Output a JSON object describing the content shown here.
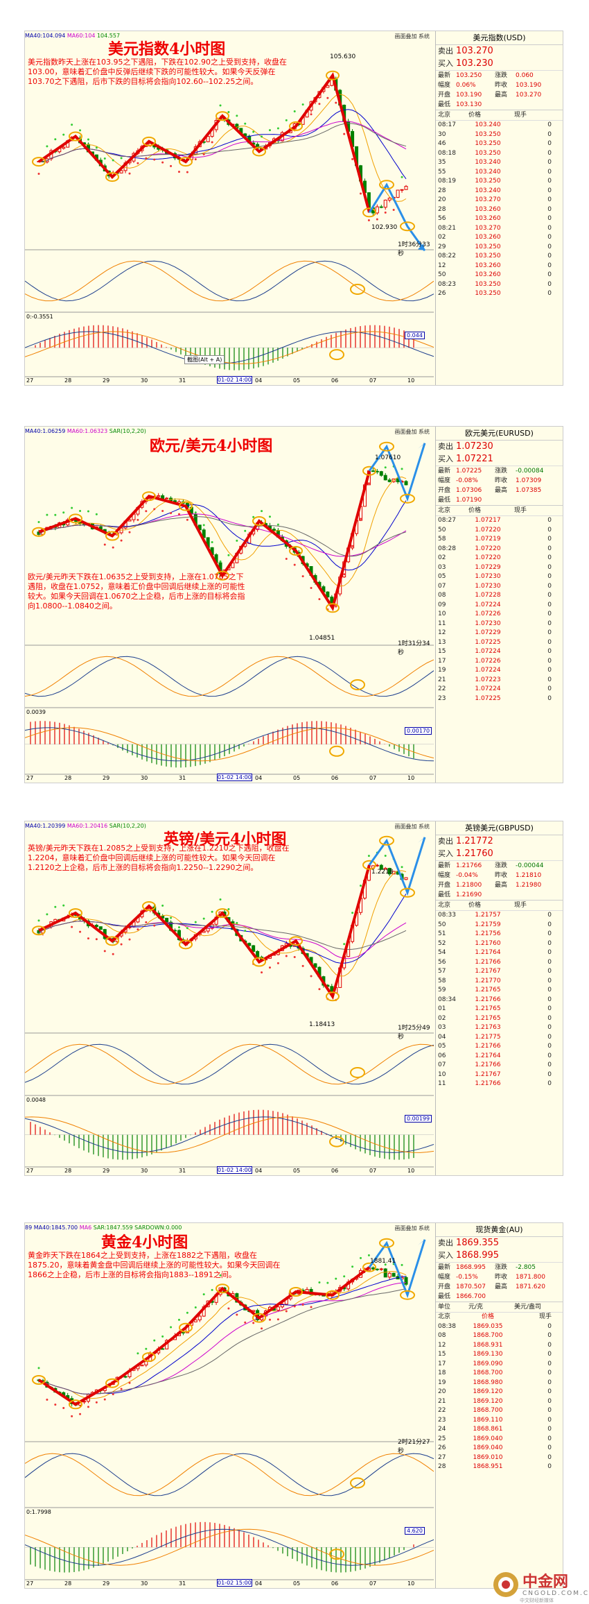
{
  "panels": [
    {
      "id": "p1",
      "title": "美元指数4小时图",
      "legend": {
        "ma40": "MA40:104.094",
        "ma60": "MA60:104",
        "other": "104.557"
      },
      "toolbar": "画面叠加  系统",
      "note": "美元指数昨天上涨在103.95之下遇阻，下跌在102.90之上受到支持，收盘在103.00，意味着汇价盘中反弹后继续下跌的可能性较大。如果今天反弹在103.70之下遇阻，后市下跌的目标将会指向102.60--102.25之间。",
      "high_label": "105.630",
      "low_label": "102.930",
      "countdown": "1时36分33秒",
      "macd_label": "0:-0.3551",
      "macd_value": "0.044",
      "screenshot_tip": "截图(Alt + A)",
      "dates": [
        "27",
        "28",
        "29",
        "30",
        "31",
        "01-02 14:00",
        "04",
        "05",
        "06",
        "07",
        "10"
      ],
      "quote": {
        "name": "美元指数(USD)",
        "sell_label": "卖出",
        "sell": "103.270",
        "buy_label": "买入",
        "buy": "103.230",
        "stats": [
          [
            "最新",
            "103.250",
            "涨跌",
            "0.060"
          ],
          [
            "幅度",
            "0.06%",
            "昨收",
            "103.190"
          ],
          [
            "开盘",
            "103.190",
            "最高",
            "103.270"
          ],
          [
            "最低",
            "103.130",
            "",
            ""
          ]
        ],
        "head": [
          "北京",
          "价格",
          "现手"
        ],
        "ticks": [
          [
            "08:17",
            "103.240",
            "0"
          ],
          [
            "30",
            "103.250",
            "0"
          ],
          [
            "46",
            "103.250",
            "0"
          ],
          [
            "08:18",
            "103.250",
            "0"
          ],
          [
            "35",
            "103.240",
            "0"
          ],
          [
            "55",
            "103.240",
            "0"
          ],
          [
            "08:19",
            "103.250",
            "0"
          ],
          [
            "28",
            "103.240",
            "0"
          ],
          [
            "20",
            "103.270",
            "0"
          ],
          [
            "28",
            "103.260",
            "0"
          ],
          [
            "56",
            "103.260",
            "0"
          ],
          [
            "08:21",
            "103.270",
            "0"
          ],
          [
            "02",
            "103.260",
            "0"
          ],
          [
            "29",
            "103.250",
            "0"
          ],
          [
            "08:22",
            "103.250",
            "0"
          ],
          [
            "12",
            "103.260",
            "0"
          ],
          [
            "50",
            "103.260",
            "0"
          ],
          [
            "08:23",
            "103.250",
            "0"
          ],
          [
            "26",
            "103.250",
            "0"
          ]
        ]
      }
    },
    {
      "id": "p2",
      "title": "欧元/美元4小时图",
      "legend": {
        "ma40": "MA40:1.06259",
        "ma60": "MA60:1.06323",
        "other": "SAR(10,2,20)"
      },
      "toolbar": "画面叠加  系统",
      "note": "欧元/美元昨天下跌在1.0635之上受到支持，上涨在1.0765之下遇阻，收盘在1.0752，意味着汇价盘中回调后继续上涨的可能性较大。如果今天回调在1.0670之上企稳，后市上涨的目标将会指向1.0800--1.0840之间。",
      "high_label": "1.07610",
      "low_label": "1.04851",
      "countdown": "1时31分34秒",
      "macd_label": "0.0039",
      "macd_value": "0.00170",
      "dates": [
        "27",
        "28",
        "29",
        "30",
        "31",
        "01-02 14:00",
        "04",
        "05",
        "06",
        "07",
        "10"
      ],
      "quote": {
        "name": "欧元美元(EURUSD)",
        "sell_label": "卖出",
        "sell": "1.07230",
        "buy_label": "买入",
        "buy": "1.07221",
        "stats": [
          [
            "最新",
            "1.07225",
            "涨跌",
            "-0.00084"
          ],
          [
            "幅度",
            "-0.08%",
            "昨收",
            "1.07309"
          ],
          [
            "开盘",
            "1.07306",
            "最高",
            "1.07385"
          ],
          [
            "最低",
            "1.07190",
            "",
            ""
          ]
        ],
        "head": [
          "北京",
          "价格",
          "现手"
        ],
        "ticks": [
          [
            "08:27",
            "1.07217",
            "0"
          ],
          [
            "50",
            "1.07220",
            "0"
          ],
          [
            "58",
            "1.07219",
            "0"
          ],
          [
            "08:28",
            "1.07220",
            "0"
          ],
          [
            "02",
            "1.07220",
            "0"
          ],
          [
            "03",
            "1.07229",
            "0"
          ],
          [
            "05",
            "1.07230",
            "0"
          ],
          [
            "07",
            "1.07230",
            "0"
          ],
          [
            "08",
            "1.07228",
            "0"
          ],
          [
            "09",
            "1.07224",
            "0"
          ],
          [
            "10",
            "1.07226",
            "0"
          ],
          [
            "11",
            "1.07230",
            "0"
          ],
          [
            "12",
            "1.07229",
            "0"
          ],
          [
            "13",
            "1.07225",
            "0"
          ],
          [
            "15",
            "1.07224",
            "0"
          ],
          [
            "17",
            "1.07226",
            "0"
          ],
          [
            "19",
            "1.07224",
            "0"
          ],
          [
            "21",
            "1.07223",
            "0"
          ],
          [
            "22",
            "1.07224",
            "0"
          ],
          [
            "23",
            "1.07225",
            "0"
          ]
        ]
      }
    },
    {
      "id": "p3",
      "title": "英镑/美元4小时图",
      "legend": {
        "ma40": "MA40:1.20399",
        "ma60": "MA60:1.20416",
        "other": "SAR(10,2,20)"
      },
      "toolbar": "画面叠加  系统",
      "note": "英镑/美元昨天下跌在1.2085之上受到支持，上涨在1.2210之下遇阻，收盘在1.2204，意味着汇价盘中回调后继续上涨的可能性较大。如果今天回调在1.2120之上企稳，后市上涨的目标将会指向1.2250--1.2290之间。",
      "high_label": "1.2218",
      "low_label": "1.18413",
      "countdown": "1时25分49秒",
      "macd_label": "0.0048",
      "macd_value": "0.00199",
      "dates": [
        "27",
        "28",
        "29",
        "30",
        "31",
        "01-02 14:00",
        "04",
        "05",
        "06",
        "07",
        "10"
      ],
      "quote": {
        "name": "英镑美元(GBPUSD)",
        "sell_label": "卖出",
        "sell": "1.21772",
        "buy_label": "买入",
        "buy": "1.21760",
        "stats": [
          [
            "最新",
            "1.21766",
            "涨跌",
            "-0.00044"
          ],
          [
            "幅度",
            "-0.04%",
            "昨收",
            "1.21810"
          ],
          [
            "开盘",
            "1.21800",
            "最高",
            "1.21980"
          ],
          [
            "最低",
            "1.21690",
            "",
            ""
          ]
        ],
        "head": [
          "北京",
          "价格",
          "现手"
        ],
        "ticks": [
          [
            "08:33",
            "1.21757",
            "0"
          ],
          [
            "50",
            "1.21759",
            "0"
          ],
          [
            "51",
            "1.21756",
            "0"
          ],
          [
            "52",
            "1.21760",
            "0"
          ],
          [
            "54",
            "1.21764",
            "0"
          ],
          [
            "56",
            "1.21766",
            "0"
          ],
          [
            "57",
            "1.21767",
            "0"
          ],
          [
            "58",
            "1.21770",
            "0"
          ],
          [
            "59",
            "1.21765",
            "0"
          ],
          [
            "08:34",
            "1.21766",
            "0"
          ],
          [
            "01",
            "1.21765",
            "0"
          ],
          [
            "02",
            "1.21765",
            "0"
          ],
          [
            "03",
            "1.21763",
            "0"
          ],
          [
            "04",
            "1.21775",
            "0"
          ],
          [
            "05",
            "1.21766",
            "0"
          ],
          [
            "06",
            "1.21764",
            "0"
          ],
          [
            "07",
            "1.21766",
            "0"
          ],
          [
            "10",
            "1.21767",
            "0"
          ],
          [
            "11",
            "1.21766",
            "0"
          ]
        ]
      }
    },
    {
      "id": "p4",
      "title": "黄金4小时图",
      "legend": {
        "ma40": "89 MA40:1845.700",
        "ma60": "MA6",
        "other": "SAR:1847.559  SARDOWN:0.000"
      },
      "toolbar": "画面叠加  系统",
      "note": "黄金昨天下跌在1864之上受到支持，上涨在1882之下遇阻，收盘在1875.20，意味着黄金盘中回调后继续上涨的可能性较大。如果今天回调在1866之上企稳，后市上涨的目标将会指向1883--1891之间。",
      "high_label": "1881.41",
      "low_label": "",
      "countdown": "2时21分27秒",
      "macd_label": "0:1.7998",
      "macd_value": "4.620",
      "dates": [
        "27",
        "28",
        "29",
        "30",
        "31",
        "01-02 15:00",
        "04",
        "05",
        "06",
        "07",
        "10"
      ],
      "quote": {
        "name": "现货黄金(AU)",
        "sell_label": "卖出",
        "sell": "1869.355",
        "buy_label": "买入",
        "buy": "1868.995",
        "stats": [
          [
            "最新",
            "1868.995",
            "涨跌",
            "-2.805"
          ],
          [
            "幅度",
            "-0.15%",
            "昨收",
            "1871.800"
          ],
          [
            "开盘",
            "1870.507",
            "最高",
            "1871.620"
          ],
          [
            "最低",
            "1866.700",
            "",
            ""
          ]
        ],
        "head": [
          "单位",
          "元/克",
          "美元/盎司"
        ],
        "ticks": [
          [
            "北京",
            "价格",
            "现手"
          ],
          [
            "08:38",
            "1869.035",
            "0"
          ],
          [
            "08",
            "1868.700",
            "0"
          ],
          [
            "12",
            "1868.931",
            "0"
          ],
          [
            "15",
            "1869.130",
            "0"
          ],
          [
            "17",
            "1869.090",
            "0"
          ],
          [
            "18",
            "1868.700",
            "0"
          ],
          [
            "19",
            "1868.980",
            "0"
          ],
          [
            "20",
            "1869.120",
            "0"
          ],
          [
            "21",
            "1869.120",
            "0"
          ],
          [
            "22",
            "1868.700",
            "0"
          ],
          [
            "23",
            "1869.110",
            "0"
          ],
          [
            "24",
            "1868.861",
            "0"
          ],
          [
            "25",
            "1869.040",
            "0"
          ],
          [
            "26",
            "1869.040",
            "0"
          ],
          [
            "27",
            "1869.010",
            "0"
          ],
          [
            "28",
            "1868.951",
            "0"
          ]
        ]
      }
    }
  ],
  "chart_data": [
    {
      "type": "candlestick",
      "title": "美元指数4小时图",
      "high": 105.63,
      "low": 102.93,
      "x": [
        "27",
        "28",
        "29",
        "30",
        "31",
        "01-02 14:00",
        "04",
        "05",
        "06",
        "07",
        "10"
      ],
      "trend_path": [
        103.9,
        104.4,
        103.6,
        104.3,
        103.9,
        104.8,
        104.1,
        104.6,
        105.6,
        102.9,
        103.4
      ],
      "forecast": [
        103.7,
        102.6,
        102.25
      ]
    },
    {
      "type": "candlestick",
      "title": "欧元/美元4小时图",
      "high": 1.0761,
      "low": 1.04851,
      "x": [
        "27",
        "28",
        "29",
        "30",
        "31",
        "01-02 14:00",
        "04",
        "05",
        "06",
        "07",
        "10"
      ],
      "trend_path": [
        1.0638,
        1.0665,
        1.063,
        1.071,
        1.069,
        1.055,
        1.066,
        1.06,
        1.0485,
        1.0761,
        1.073
      ],
      "forecast": [
        1.067,
        1.08,
        1.084
      ]
    },
    {
      "type": "candlestick",
      "title": "英镑/美元4小时图",
      "high": 1.2218,
      "low": 1.18413,
      "x": [
        "27",
        "28",
        "29",
        "30",
        "31",
        "01-02 14:00",
        "04",
        "05",
        "06",
        "07",
        "10"
      ],
      "trend_path": [
        1.203,
        1.208,
        1.2,
        1.21,
        1.199,
        1.208,
        1.194,
        1.2,
        1.1841,
        1.2218,
        1.218
      ],
      "forecast": [
        1.212,
        1.225,
        1.229
      ]
    },
    {
      "type": "candlestick",
      "title": "黄金4小时图",
      "high": 1881.41,
      "x": [
        "27",
        "28",
        "29",
        "30",
        "31",
        "01-02 15:00",
        "04",
        "05",
        "06",
        "07",
        "10"
      ],
      "trend_path": [
        1812,
        1797,
        1810,
        1826,
        1844,
        1868,
        1850,
        1866,
        1864,
        1881,
        1872
      ],
      "forecast": [
        1866,
        1883,
        1891
      ]
    }
  ],
  "logo": {
    "name": "中金网",
    "domain": "CNGOLD.COM.CN",
    "sub": "中文财经新媒体"
  },
  "colors": {
    "accent": "#e00000",
    "forecast": "#2a8fe8",
    "circle": "#f0a800"
  }
}
